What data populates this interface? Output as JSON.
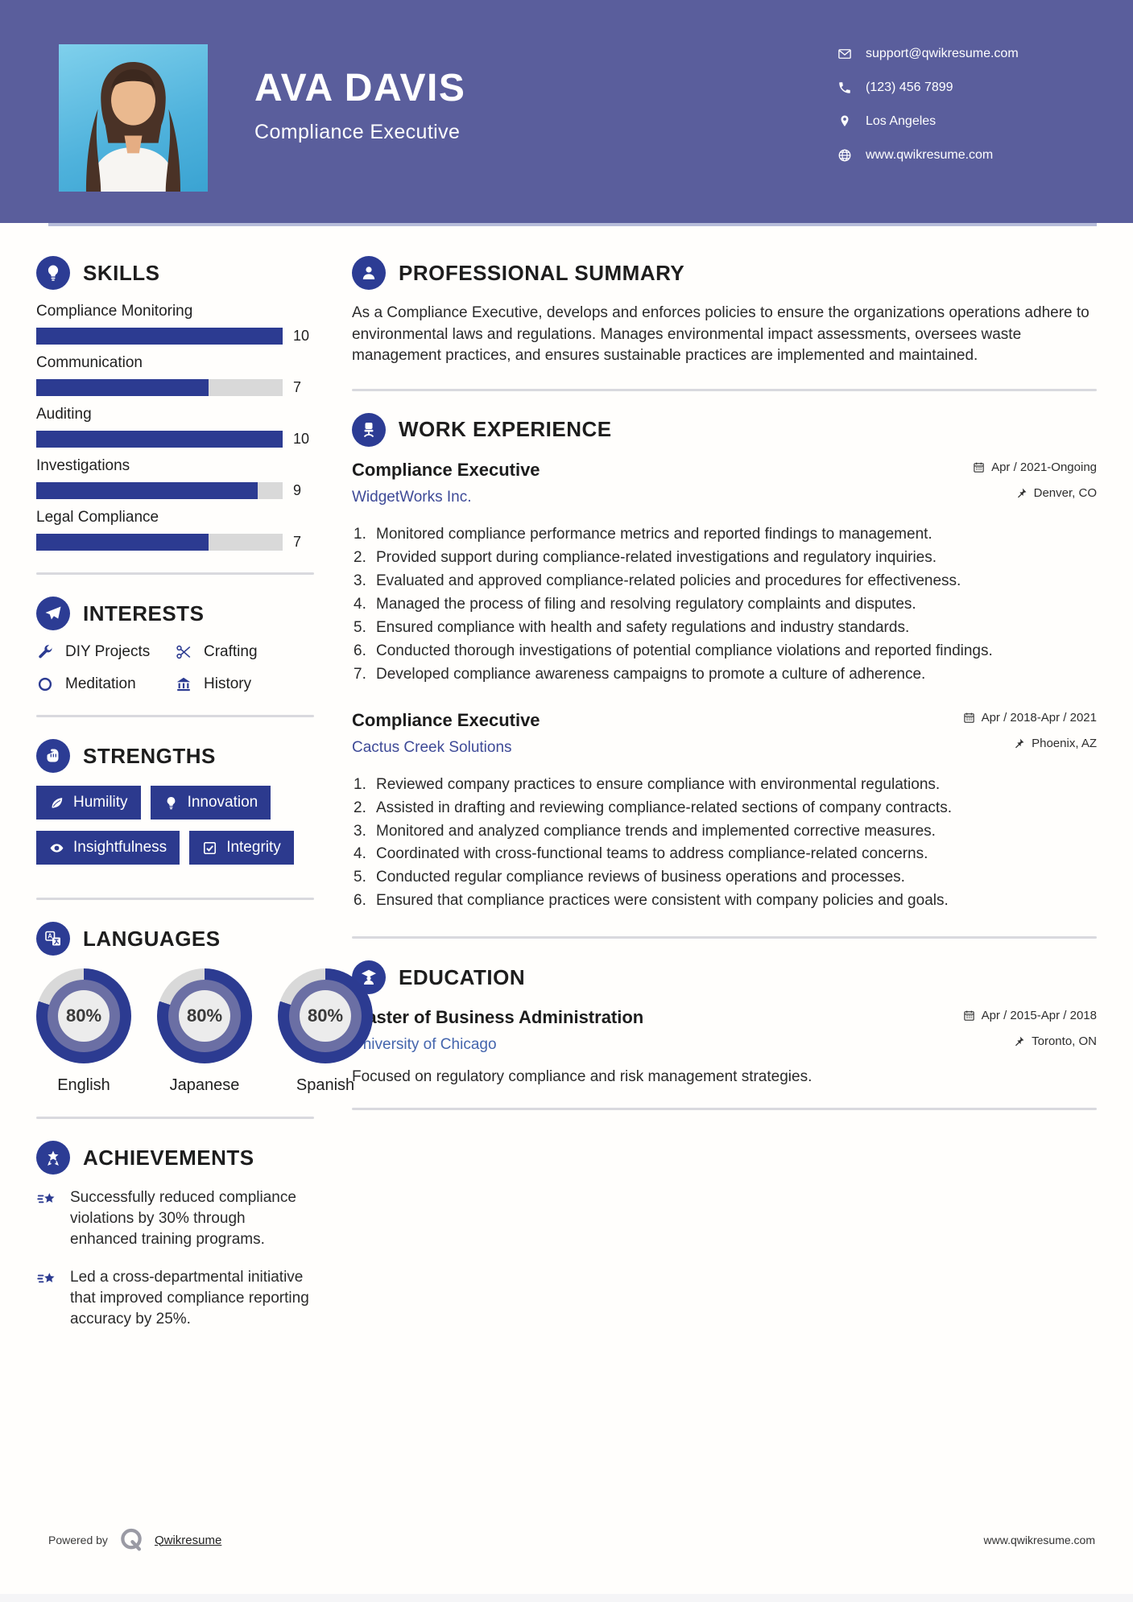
{
  "header": {
    "name": "AVA DAVIS",
    "title": "Compliance Executive",
    "contacts": [
      {
        "icon": "email-icon",
        "text": "support@qwikresume.com"
      },
      {
        "icon": "phone-icon",
        "text": "(123) 456 7899"
      },
      {
        "icon": "location-icon",
        "text": "Los Angeles"
      },
      {
        "icon": "globe-icon",
        "text": "www.qwikresume.com"
      }
    ]
  },
  "skills": {
    "heading": "SKILLS",
    "items": [
      {
        "label": "Compliance Monitoring",
        "value": 10,
        "max": 10
      },
      {
        "label": "Communication",
        "value": 7,
        "max": 10
      },
      {
        "label": "Auditing",
        "value": 10,
        "max": 10
      },
      {
        "label": "Investigations",
        "value": 9,
        "max": 10
      },
      {
        "label": "Legal Compliance",
        "value": 7,
        "max": 10
      }
    ]
  },
  "interests": {
    "heading": "INTERESTS",
    "items": [
      {
        "icon": "wrench-icon",
        "label": "DIY Projects"
      },
      {
        "icon": "scissors-icon",
        "label": "Crafting"
      },
      {
        "icon": "circle-icon",
        "label": "Meditation"
      },
      {
        "icon": "museum-icon",
        "label": "History"
      }
    ]
  },
  "strengths": {
    "heading": "STRENGTHS",
    "items": [
      {
        "icon": "leaf-icon",
        "label": "Humility"
      },
      {
        "icon": "bulb-icon",
        "label": "Innovation"
      },
      {
        "icon": "eye-icon",
        "label": "Insightfulness"
      },
      {
        "icon": "checkbox-icon",
        "label": "Integrity"
      }
    ]
  },
  "languages": {
    "heading": "LANGUAGES",
    "items": [
      {
        "label": "English",
        "percent": 80
      },
      {
        "label": "Japanese",
        "percent": 80
      },
      {
        "label": "Spanish",
        "percent": 80
      }
    ]
  },
  "achievements": {
    "heading": "ACHIEVEMENTS",
    "items": [
      "Successfully reduced compliance violations by 30% through enhanced training programs.",
      "Led a cross-departmental initiative that improved compliance reporting accuracy by 25%."
    ]
  },
  "summary": {
    "heading": "PROFESSIONAL SUMMARY",
    "text": "As a Compliance Executive, develops and enforces policies to ensure the organizations operations adhere to environmental laws and regulations. Manages environmental impact assessments, oversees waste management practices, and ensures sustainable practices are implemented and maintained."
  },
  "experience": {
    "heading": "WORK EXPERIENCE",
    "jobs": [
      {
        "title": "Compliance Executive",
        "company": "WidgetWorks Inc.",
        "dates": "Apr / 2021-Ongoing",
        "location": "Denver, CO",
        "bullets": [
          "Monitored compliance performance metrics and reported findings to management.",
          "Provided support during compliance-related investigations and regulatory inquiries.",
          "Evaluated and approved compliance-related policies and procedures for effectiveness.",
          "Managed the process of filing and resolving regulatory complaints and disputes.",
          "Ensured compliance with health and safety regulations and industry standards.",
          "Conducted thorough investigations of potential compliance violations and reported findings.",
          "Developed compliance awareness campaigns to promote a culture of adherence."
        ]
      },
      {
        "title": "Compliance Executive",
        "company": "Cactus Creek Solutions",
        "dates": "Apr / 2018-Apr / 2021",
        "location": "Phoenix, AZ",
        "bullets": [
          "Reviewed company practices to ensure compliance with environmental regulations.",
          "Assisted in drafting and reviewing compliance-related sections of company contracts.",
          "Monitored and analyzed compliance trends and implemented corrective measures.",
          "Coordinated with cross-functional teams to address compliance-related concerns.",
          "Conducted regular compliance reviews of business operations and processes.",
          "Ensured that compliance practices were consistent with company policies and goals."
        ]
      }
    ]
  },
  "education": {
    "heading": "EDUCATION",
    "degree": "Master of Business Administration",
    "school": "University of Chicago",
    "dates": "Apr / 2015-Apr / 2018",
    "location": "Toronto, ON",
    "description": "Focused on regulatory compliance and risk management strategies."
  },
  "footer": {
    "powered_by": "Powered by",
    "brand": "Qwikresume",
    "website": "www.qwikresume.com"
  },
  "colors": {
    "header_bg": "#5a5e9c",
    "accent": "#2c3b91",
    "bar_track": "#d9d9d9",
    "donut_mid": "#6b6fa4",
    "company_link": "#3e4a97",
    "school_link": "#4465ad"
  }
}
